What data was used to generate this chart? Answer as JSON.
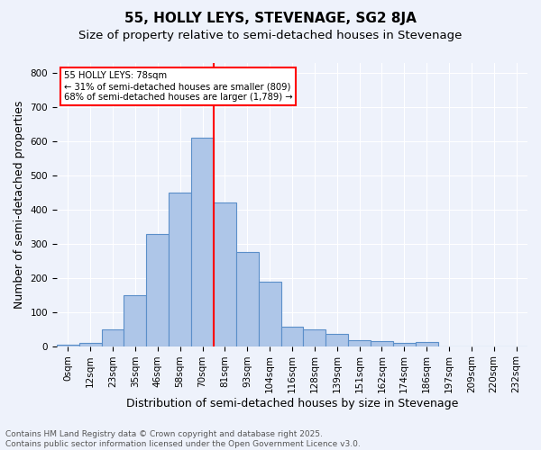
{
  "title": "55, HOLLY LEYS, STEVENAGE, SG2 8JA",
  "subtitle": "Size of property relative to semi-detached houses in Stevenage",
  "xlabel": "Distribution of semi-detached houses by size in Stevenage",
  "ylabel": "Number of semi-detached properties",
  "footnote": "Contains HM Land Registry data © Crown copyright and database right 2025.\nContains public sector information licensed under the Open Government Licence v3.0.",
  "bar_labels": [
    "0sqm",
    "12sqm",
    "23sqm",
    "35sqm",
    "46sqm",
    "58sqm",
    "70sqm",
    "81sqm",
    "93sqm",
    "104sqm",
    "116sqm",
    "128sqm",
    "139sqm",
    "151sqm",
    "162sqm",
    "174sqm",
    "186sqm",
    "197sqm",
    "209sqm",
    "220sqm",
    "232sqm"
  ],
  "bar_values": [
    5,
    10,
    50,
    150,
    330,
    450,
    610,
    420,
    275,
    190,
    57,
    50,
    37,
    18,
    14,
    10,
    13,
    0,
    0,
    0,
    0
  ],
  "bar_color": "#aec6e8",
  "bar_edge_color": "#5b8fc9",
  "vline_x_index": 7,
  "vline_color": "red",
  "annotation_title": "55 HOLLY LEYS: 78sqm",
  "annotation_line1": "← 31% of semi-detached houses are smaller (809)",
  "annotation_line2": "68% of semi-detached houses are larger (1,789) →",
  "ylim": [
    0,
    830
  ],
  "yticks": [
    0,
    100,
    200,
    300,
    400,
    500,
    600,
    700,
    800
  ],
  "background_color": "#eef2fb",
  "grid_color": "#ffffff",
  "title_fontsize": 11,
  "subtitle_fontsize": 9.5,
  "axis_label_fontsize": 9,
  "tick_fontsize": 7.5,
  "footnote_fontsize": 6.5
}
